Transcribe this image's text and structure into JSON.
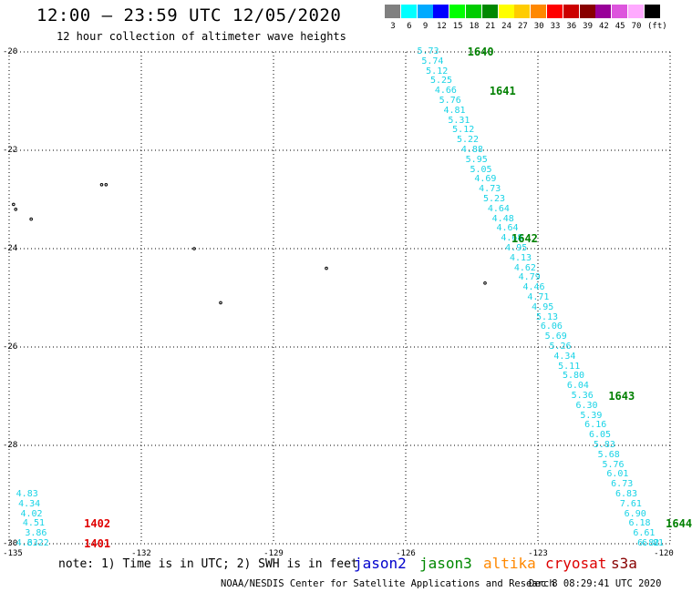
{
  "header": {
    "title": "12:00 – 23:59 UTC 12/05/2020",
    "subtitle": "12 hour collection of altimeter wave heights"
  },
  "legend": {
    "unit": "(ft)",
    "items": [
      {
        "label": "3",
        "color": "#808080"
      },
      {
        "label": "6",
        "color": "#00ffff"
      },
      {
        "label": "9",
        "color": "#00aaff"
      },
      {
        "label": "12",
        "color": "#0000ff"
      },
      {
        "label": "15",
        "color": "#00ff00"
      },
      {
        "label": "18",
        "color": "#00cc00"
      },
      {
        "label": "21",
        "color": "#008800"
      },
      {
        "label": "24",
        "color": "#ffff00"
      },
      {
        "label": "27",
        "color": "#ffcc00"
      },
      {
        "label": "30",
        "color": "#ff8800"
      },
      {
        "label": "33",
        "color": "#ff0000"
      },
      {
        "label": "36",
        "color": "#cc0000"
      },
      {
        "label": "39",
        "color": "#880000"
      },
      {
        "label": "42",
        "color": "#990099"
      },
      {
        "label": "45",
        "color": "#dd55dd"
      },
      {
        "label": "70",
        "color": "#ffaaff"
      },
      {
        "label": "",
        "color": "#000000"
      }
    ]
  },
  "axes": {
    "lon_ticks": [
      "-135",
      "-132",
      "-129",
      "-126",
      "-123",
      "-120"
    ],
    "lat_ticks": [
      "-20",
      "-22",
      "-24",
      "-26",
      "-28",
      "-30"
    ],
    "lon_range": [
      -135,
      -120
    ],
    "lat_range": [
      -30,
      -20
    ],
    "grid": "dotted"
  },
  "chart_data": {
    "type": "scatter",
    "track_color": "#19d3e6",
    "tracks": [
      {
        "satellite": "jason3",
        "points": [
          {
            "lon": -125.7,
            "lat": -20.0,
            "swh": "5.73"
          },
          {
            "lon": -125.6,
            "lat": -20.2,
            "swh": "5.74"
          },
          {
            "lon": -125.5,
            "lat": -20.4,
            "swh": "5.12"
          },
          {
            "lon": -125.4,
            "lat": -20.6,
            "swh": "5.25"
          },
          {
            "lon": -125.3,
            "lat": -20.8,
            "swh": "4.66"
          },
          {
            "lon": -125.2,
            "lat": -21.0,
            "swh": "5.76"
          },
          {
            "lon": -125.1,
            "lat": -21.2,
            "swh": "4.81"
          },
          {
            "lon": -125.0,
            "lat": -21.4,
            "swh": "5.31"
          },
          {
            "lon": -124.9,
            "lat": -21.6,
            "swh": "5.12"
          },
          {
            "lon": -124.8,
            "lat": -21.8,
            "swh": "5.22"
          },
          {
            "lon": -124.7,
            "lat": -22.0,
            "swh": "4.88"
          },
          {
            "lon": -124.6,
            "lat": -22.2,
            "swh": "5.95"
          },
          {
            "lon": -124.5,
            "lat": -22.4,
            "swh": "5.05"
          },
          {
            "lon": -124.4,
            "lat": -22.6,
            "swh": "4.69"
          },
          {
            "lon": -124.3,
            "lat": -22.8,
            "swh": "4.73"
          },
          {
            "lon": -124.2,
            "lat": -23.0,
            "swh": "5.23"
          },
          {
            "lon": -124.1,
            "lat": -23.2,
            "swh": "4.64"
          },
          {
            "lon": -124.0,
            "lat": -23.4,
            "swh": "4.48"
          },
          {
            "lon": -123.9,
            "lat": -23.6,
            "swh": "4.64"
          },
          {
            "lon": -123.8,
            "lat": -23.8,
            "swh": "4.68"
          },
          {
            "lon": -123.7,
            "lat": -24.0,
            "swh": "4.95"
          },
          {
            "lon": -123.6,
            "lat": -24.2,
            "swh": "4.13"
          },
          {
            "lon": -123.5,
            "lat": -24.4,
            "swh": "4.62"
          },
          {
            "lon": -123.4,
            "lat": -24.6,
            "swh": "4.79"
          },
          {
            "lon": -123.3,
            "lat": -24.8,
            "swh": "4.46"
          },
          {
            "lon": -123.2,
            "lat": -25.0,
            "swh": "4.71"
          },
          {
            "lon": -123.1,
            "lat": -25.2,
            "swh": "4.95"
          },
          {
            "lon": -123.0,
            "lat": -25.4,
            "swh": "5.13"
          },
          {
            "lon": -122.9,
            "lat": -25.6,
            "swh": "6.06"
          },
          {
            "lon": -122.8,
            "lat": -25.8,
            "swh": "5.69"
          },
          {
            "lon": -122.7,
            "lat": -26.0,
            "swh": "5.26"
          },
          {
            "lon": -122.6,
            "lat": -26.2,
            "swh": "4.34"
          },
          {
            "lon": -122.5,
            "lat": -26.4,
            "swh": "5.11"
          },
          {
            "lon": -122.4,
            "lat": -26.6,
            "swh": "5.80"
          },
          {
            "lon": -122.3,
            "lat": -26.8,
            "swh": "6.04"
          },
          {
            "lon": -122.2,
            "lat": -27.0,
            "swh": "5.36"
          },
          {
            "lon": -122.1,
            "lat": -27.2,
            "swh": "6.30"
          },
          {
            "lon": -122.0,
            "lat": -27.4,
            "swh": "5.39"
          },
          {
            "lon": -121.9,
            "lat": -27.6,
            "swh": "6.16"
          },
          {
            "lon": -121.8,
            "lat": -27.8,
            "swh": "6.05"
          },
          {
            "lon": -121.7,
            "lat": -28.0,
            "swh": "5.83"
          },
          {
            "lon": -121.6,
            "lat": -28.2,
            "swh": "5.68"
          },
          {
            "lon": -121.5,
            "lat": -28.4,
            "swh": "5.76"
          },
          {
            "lon": -121.4,
            "lat": -28.6,
            "swh": "6.01"
          },
          {
            "lon": -121.3,
            "lat": -28.8,
            "swh": "6.73"
          },
          {
            "lon": -121.2,
            "lat": -29.0,
            "swh": "6.83"
          },
          {
            "lon": -121.1,
            "lat": -29.2,
            "swh": "7.61"
          },
          {
            "lon": -121.0,
            "lat": -29.4,
            "swh": "6.90"
          },
          {
            "lon": -120.9,
            "lat": -29.6,
            "swh": "6.18"
          },
          {
            "lon": -120.8,
            "lat": -29.8,
            "swh": "6.61"
          },
          {
            "lon": -120.7,
            "lat": -30.0,
            "swh": "6.82"
          },
          {
            "lon": -120.6,
            "lat": -30.0,
            "swh": "6.81"
          }
        ]
      },
      {
        "satellite": "cryosat",
        "points": [
          {
            "lon": -134.8,
            "lat": -29.0,
            "swh": "4.83"
          },
          {
            "lon": -134.75,
            "lat": -29.2,
            "swh": "4.34"
          },
          {
            "lon": -134.7,
            "lat": -29.4,
            "swh": "4.02"
          },
          {
            "lon": -134.65,
            "lat": -29.6,
            "swh": "4.51"
          },
          {
            "lon": -134.6,
            "lat": -29.8,
            "swh": "3.86"
          },
          {
            "lon": -134.55,
            "lat": -30.0,
            "swh": "3.22"
          },
          {
            "lon": -134.8,
            "lat": -30.0,
            "swh": "4.63"
          }
        ]
      }
    ],
    "pass_labels": [
      {
        "text": "1640",
        "lon": -124.6,
        "lat": -20.0,
        "color": "#008000"
      },
      {
        "text": "1641",
        "lon": -124.1,
        "lat": -20.8,
        "color": "#008000"
      },
      {
        "text": "1642",
        "lon": -123.6,
        "lat": -23.8,
        "color": "#008000"
      },
      {
        "text": "1643",
        "lon": -121.4,
        "lat": -27.0,
        "color": "#008000"
      },
      {
        "text": "1644",
        "lon": -120.1,
        "lat": -29.6,
        "color": "#008000"
      },
      {
        "text": "1402",
        "lon": -133.3,
        "lat": -29.6,
        "color": "#e00000"
      },
      {
        "text": "1401",
        "lon": -133.3,
        "lat": -30.0,
        "color": "#e00000"
      }
    ],
    "islands": [
      {
        "lon": -132.9,
        "lat": -22.7
      },
      {
        "lon": -132.8,
        "lat": -22.7
      },
      {
        "lon": -134.9,
        "lat": -23.1
      },
      {
        "lon": -134.85,
        "lat": -23.2
      },
      {
        "lon": -134.5,
        "lat": -23.4
      },
      {
        "lon": -130.8,
        "lat": -24.0
      },
      {
        "lon": -130.2,
        "lat": -25.1
      },
      {
        "lon": -127.8,
        "lat": -24.4
      },
      {
        "lon": -124.2,
        "lat": -24.7
      }
    ]
  },
  "footer": {
    "note": "note: 1) Time is in UTC; 2) SWH is in feet",
    "satellites": [
      {
        "name": "jason2",
        "color": "#0000cc"
      },
      {
        "name": "jason3",
        "color": "#008800"
      },
      {
        "name": "altika",
        "color": "#ff8800"
      },
      {
        "name": "cryosat",
        "color": "#dd0000"
      },
      {
        "name": "s3a",
        "color": "#880000"
      }
    ],
    "credit": "NOAA/NESDIS Center for Satellite Applications and Research",
    "timestamp": "Dec  8 08:29:41 UTC 2020"
  }
}
